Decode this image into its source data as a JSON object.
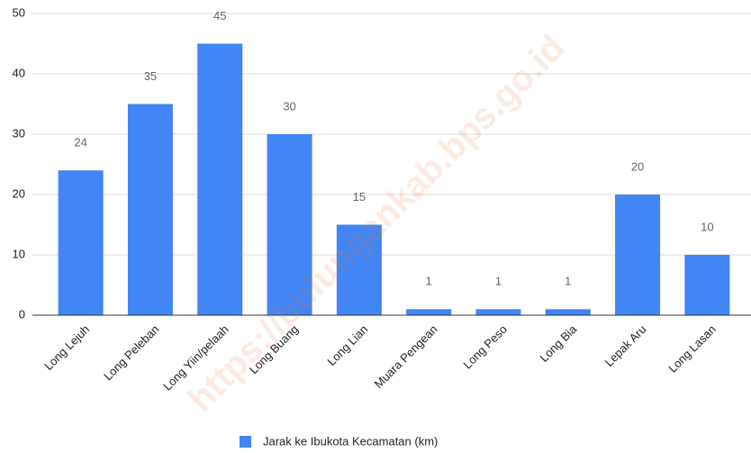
{
  "chart_data": {
    "type": "bar",
    "categories": [
      "Long Lejuh",
      "Long Peleban",
      "Long Yiin/pelaah",
      "Long Buang",
      "Long Lian",
      "Muara Pengean",
      "Long Peso",
      "Long Bia",
      "Lepak Aru",
      "Long Lasan"
    ],
    "series": [
      {
        "name": "Jarak ke Ibukota Kecamatan (km)",
        "color": "#4285f4",
        "values": [
          24,
          35,
          45,
          30,
          15,
          1,
          1,
          1,
          20,
          10
        ]
      }
    ],
    "ylim": [
      0,
      50
    ],
    "yticks": [
      0,
      10,
      20,
      30,
      40,
      50
    ],
    "grid": true,
    "legend": "bottom",
    "watermark": "https://bulungankab.bps.go.id"
  }
}
